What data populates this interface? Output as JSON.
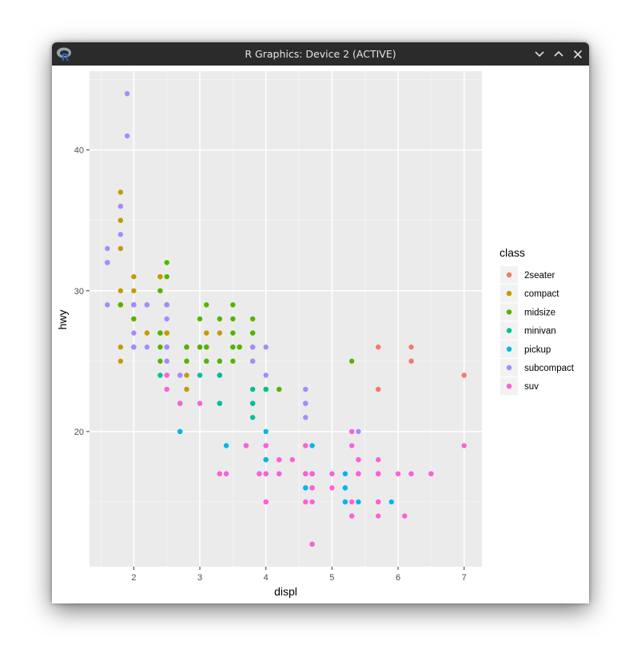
{
  "window": {
    "title": "R Graphics: Device 2 (ACTIVE)",
    "icon": "r-logo-icon",
    "controls": [
      "minimize-icon",
      "maximize-icon",
      "close-icon"
    ]
  },
  "chart_data": {
    "type": "scatter",
    "title": "",
    "xlabel": "displ",
    "ylabel": "hwy",
    "xlim": [
      1.33,
      7.27
    ],
    "ylim": [
      10.4,
      45.6
    ],
    "x_ticks": [
      2,
      3,
      4,
      5,
      6,
      7
    ],
    "y_ticks": [
      20,
      30,
      40
    ],
    "grid": true,
    "legend": {
      "title": "class",
      "position": "right",
      "entries": [
        {
          "name": "2seater",
          "color": "#F8766D"
        },
        {
          "name": "compact",
          "color": "#C49A00"
        },
        {
          "name": "midsize",
          "color": "#53B400"
        },
        {
          "name": "minivan",
          "color": "#00C094"
        },
        {
          "name": "pickup",
          "color": "#00B6EB"
        },
        {
          "name": "subcompact",
          "color": "#A58AFF"
        },
        {
          "name": "suv",
          "color": "#FB61D7"
        }
      ]
    },
    "series": [
      {
        "name": "2seater",
        "points": [
          [
            5.7,
            26
          ],
          [
            5.7,
            23
          ],
          [
            6.2,
            26
          ],
          [
            6.2,
            25
          ],
          [
            7.0,
            24
          ]
        ]
      },
      {
        "name": "compact",
        "points": [
          [
            1.8,
            29
          ],
          [
            1.8,
            29
          ],
          [
            2.0,
            31
          ],
          [
            2.0,
            30
          ],
          [
            2.8,
            26
          ],
          [
            2.8,
            26
          ],
          [
            3.1,
            27
          ],
          [
            1.8,
            26
          ],
          [
            1.8,
            25
          ],
          [
            2.0,
            28
          ],
          [
            2.0,
            29
          ],
          [
            2.8,
            25
          ],
          [
            3.1,
            25
          ],
          [
            2.2,
            27
          ],
          [
            2.2,
            29
          ],
          [
            2.4,
            31
          ],
          [
            2.4,
            31
          ],
          [
            3.0,
            26
          ],
          [
            1.8,
            30
          ],
          [
            1.8,
            33
          ],
          [
            1.8,
            35
          ],
          [
            1.8,
            37
          ],
          [
            1.8,
            35
          ],
          [
            2.0,
            29
          ],
          [
            2.0,
            26
          ],
          [
            2.0,
            29
          ],
          [
            2.5,
            29
          ],
          [
            2.5,
            27
          ],
          [
            2.8,
            23
          ],
          [
            2.8,
            24
          ],
          [
            2.4,
            27
          ],
          [
            2.4,
            30
          ],
          [
            2.5,
            27
          ],
          [
            2.5,
            25
          ],
          [
            3.3,
            27
          ],
          [
            1.8,
            29
          ],
          [
            2.5,
            29
          ],
          [
            2.8,
            26
          ]
        ]
      },
      {
        "name": "midsize",
        "points": [
          [
            2.4,
            26
          ],
          [
            3.0,
            28
          ],
          [
            3.5,
            26
          ],
          [
            3.1,
            29
          ],
          [
            3.8,
            26
          ],
          [
            3.8,
            27
          ],
          [
            3.3,
            28
          ],
          [
            2.4,
            27
          ],
          [
            3.5,
            26
          ],
          [
            3.0,
            26
          ],
          [
            2.4,
            30
          ],
          [
            3.5,
            27
          ],
          [
            3.1,
            26
          ],
          [
            3.3,
            25
          ],
          [
            3.5,
            29
          ],
          [
            4.0,
            23
          ],
          [
            4.2,
            23
          ],
          [
            3.1,
            26
          ],
          [
            3.1,
            25
          ],
          [
            3.6,
            26
          ],
          [
            5.3,
            25
          ],
          [
            1.8,
            29
          ],
          [
            2.5,
            29
          ],
          [
            2.5,
            31
          ],
          [
            2.5,
            32
          ],
          [
            2.8,
            26
          ],
          [
            3.0,
            26
          ],
          [
            3.5,
            28
          ],
          [
            3.5,
            25
          ],
          [
            3.8,
            28
          ],
          [
            3.6,
            26
          ],
          [
            3.8,
            27
          ],
          [
            2.0,
            28
          ],
          [
            2.0,
            29
          ],
          [
            2.4,
            25
          ],
          [
            2.8,
            25
          ],
          [
            2.8,
            26
          ],
          [
            3.1,
            26
          ],
          [
            3.8,
            25
          ],
          [
            3.3,
            25
          ],
          [
            2.4,
            27
          ]
        ]
      },
      {
        "name": "minivan",
        "points": [
          [
            2.4,
            24
          ],
          [
            3.0,
            24
          ],
          [
            3.3,
            22
          ],
          [
            3.3,
            22
          ],
          [
            3.3,
            24
          ],
          [
            3.3,
            24
          ],
          [
            3.3,
            24
          ],
          [
            3.8,
            22
          ],
          [
            3.8,
            21
          ],
          [
            3.8,
            23
          ],
          [
            4.0,
            23
          ],
          [
            2.7,
            22
          ],
          [
            3.8,
            22
          ]
        ]
      },
      {
        "name": "pickup",
        "points": [
          [
            3.7,
            19
          ],
          [
            4.7,
            17
          ],
          [
            4.7,
            17
          ],
          [
            5.2,
            17
          ],
          [
            5.2,
            15
          ],
          [
            3.9,
            17
          ],
          [
            4.7,
            12
          ],
          [
            4.7,
            17
          ],
          [
            5.2,
            16
          ],
          [
            5.7,
            17
          ],
          [
            5.9,
            15
          ],
          [
            4.7,
            19
          ],
          [
            4.7,
            17
          ],
          [
            4.7,
            17
          ],
          [
            5.2,
            15
          ],
          [
            5.2,
            16
          ],
          [
            5.4,
            15
          ],
          [
            2.7,
            20
          ],
          [
            2.7,
            20
          ],
          [
            3.4,
            17
          ],
          [
            3.4,
            19
          ],
          [
            4.0,
            20
          ],
          [
            4.0,
            18
          ],
          [
            4.0,
            17
          ],
          [
            4.2,
            17
          ],
          [
            4.6,
            16
          ],
          [
            4.6,
            17
          ],
          [
            4.7,
            16
          ],
          [
            5.4,
            17
          ],
          [
            4.6,
            17
          ],
          [
            4.6,
            16
          ],
          [
            4.0,
            18
          ]
        ]
      },
      {
        "name": "subcompact",
        "points": [
          [
            3.8,
            26
          ],
          [
            3.8,
            25
          ],
          [
            4.0,
            26
          ],
          [
            4.0,
            24
          ],
          [
            4.6,
            21
          ],
          [
            4.6,
            22
          ],
          [
            4.6,
            23
          ],
          [
            4.6,
            22
          ],
          [
            5.4,
            20
          ],
          [
            1.6,
            33
          ],
          [
            1.6,
            32
          ],
          [
            1.6,
            32
          ],
          [
            1.6,
            29
          ],
          [
            1.6,
            32
          ],
          [
            1.8,
            34
          ],
          [
            1.8,
            36
          ],
          [
            1.8,
            36
          ],
          [
            2.0,
            29
          ],
          [
            2.0,
            26
          ],
          [
            2.0,
            27
          ],
          [
            2.0,
            26
          ],
          [
            2.5,
            26
          ],
          [
            2.2,
            26
          ],
          [
            2.2,
            29
          ],
          [
            2.5,
            28
          ],
          [
            2.5,
            29
          ],
          [
            1.9,
            44
          ],
          [
            2.0,
            29
          ],
          [
            2.0,
            26
          ],
          [
            2.5,
            26
          ],
          [
            2.0,
            26
          ],
          [
            2.5,
            26
          ],
          [
            2.7,
            24
          ],
          [
            2.5,
            25
          ],
          [
            2.7,
            24
          ],
          [
            1.9,
            41
          ]
        ]
      },
      {
        "name": "suv",
        "points": [
          [
            5.3,
            20
          ],
          [
            5.3,
            15
          ],
          [
            5.3,
            20
          ],
          [
            5.7,
            17
          ],
          [
            6.0,
            17
          ],
          [
            5.7,
            15
          ],
          [
            5.7,
            17
          ],
          [
            6.2,
            17
          ],
          [
            6.2,
            17
          ],
          [
            7.0,
            19
          ],
          [
            5.3,
            19
          ],
          [
            6.5,
            17
          ],
          [
            4.0,
            17
          ],
          [
            4.0,
            19
          ],
          [
            4.6,
            17
          ],
          [
            5.0,
            17
          ],
          [
            4.2,
            17
          ],
          [
            4.2,
            18
          ],
          [
            4.6,
            17
          ],
          [
            4.6,
            19
          ],
          [
            5.4,
            18
          ],
          [
            5.4,
            17
          ],
          [
            4.7,
            17
          ],
          [
            4.7,
            15
          ],
          [
            4.7,
            17
          ],
          [
            4.7,
            12
          ],
          [
            4.7,
            17
          ],
          [
            5.7,
            18
          ],
          [
            6.1,
            14
          ],
          [
            4.0,
            19
          ],
          [
            4.2,
            18
          ],
          [
            4.4,
            18
          ],
          [
            4.6,
            19
          ],
          [
            5.4,
            17
          ],
          [
            5.4,
            18
          ],
          [
            5.4,
            17
          ],
          [
            4.0,
            15
          ],
          [
            4.6,
            17
          ],
          [
            5.0,
            16
          ],
          [
            2.5,
            24
          ],
          [
            2.5,
            24
          ],
          [
            2.5,
            23
          ],
          [
            3.3,
            17
          ],
          [
            3.7,
            19
          ],
          [
            4.0,
            15
          ],
          [
            4.0,
            19
          ],
          [
            4.6,
            15
          ],
          [
            4.6,
            17
          ],
          [
            5.3,
            14
          ],
          [
            5.7,
            17
          ],
          [
            6.5,
            17
          ],
          [
            3.0,
            22
          ],
          [
            3.7,
            19
          ],
          [
            4.0,
            17
          ],
          [
            4.7,
            16
          ],
          [
            4.7,
            17
          ],
          [
            5.7,
            15
          ],
          [
            5.7,
            14
          ],
          [
            3.3,
            17
          ],
          [
            3.9,
            17
          ],
          [
            2.7,
            22
          ],
          [
            3.4,
            17
          ]
        ]
      }
    ]
  }
}
